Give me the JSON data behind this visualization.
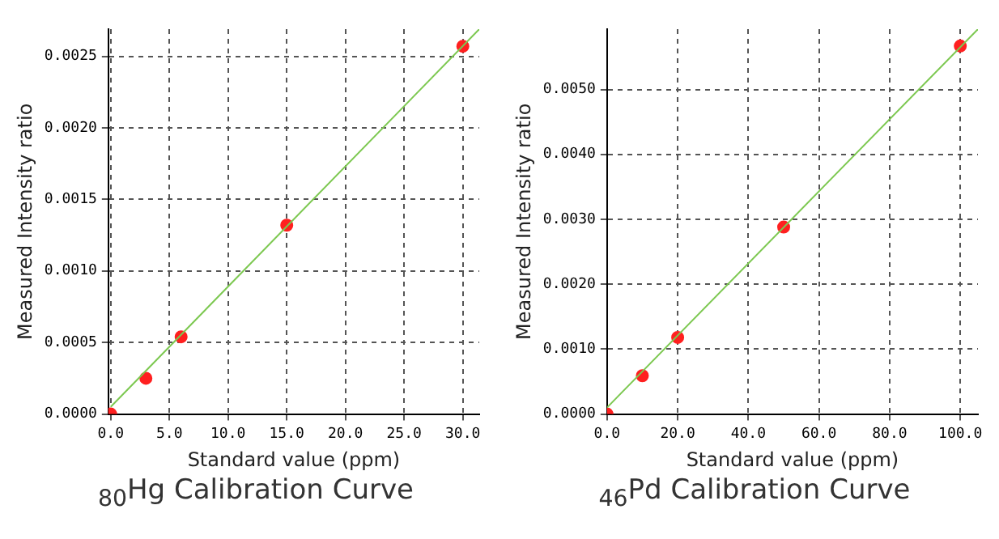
{
  "chart_data": [
    {
      "type": "scatter",
      "title": "$_{80}$Hg Calibration Curve",
      "xlabel": "Standard value (ppm)",
      "ylabel": "Measured Intensity ratio",
      "xlim": [
        -0.2,
        31.4
      ],
      "ylim": [
        0,
        0.00269
      ],
      "xticks": [
        {
          "value": 0,
          "label": "0.0"
        },
        {
          "value": 5,
          "label": "5.0"
        },
        {
          "value": 10,
          "label": "10.0"
        },
        {
          "value": 15,
          "label": "15.0"
        },
        {
          "value": 20,
          "label": "20.0"
        },
        {
          "value": 25,
          "label": "25.0"
        },
        {
          "value": 30,
          "label": "30.0"
        }
      ],
      "yticks": [
        {
          "value": 0,
          "label": "0.0000"
        },
        {
          "value": 0.0005,
          "label": "0.0005"
        },
        {
          "value": 0.001,
          "label": "0.0010"
        },
        {
          "value": 0.0015,
          "label": "0.0015"
        },
        {
          "value": 0.002,
          "label": "0.0020"
        },
        {
          "value": 0.0025,
          "label": "0.0025"
        }
      ],
      "grid": true,
      "legend": false,
      "marker": "circle",
      "series": [
        {
          "type": "line",
          "color": "#7cc850",
          "x": [
            0,
            31.4
          ],
          "values": [
            5e-05,
            0.00269
          ],
          "marker": "none"
        },
        {
          "color": "#ff2020",
          "x": [
            0,
            3,
            6,
            15,
            30
          ],
          "values": [
            0,
            0.00025,
            0.00054,
            0.00132,
            0.00257
          ]
        }
      ]
    },
    {
      "type": "scatter",
      "title": "$_{46}$Pd Calibration Curve",
      "xlabel": "Standard value (ppm)",
      "ylabel": "Measured Intensity ratio",
      "xlim": [
        0,
        105
      ],
      "ylim": [
        0,
        0.00593
      ],
      "xticks": [
        {
          "value": 0,
          "label": "0.0"
        },
        {
          "value": 20,
          "label": "20.0"
        },
        {
          "value": 40,
          "label": "40.0"
        },
        {
          "value": 60,
          "label": "60.0"
        },
        {
          "value": 80,
          "label": "80.0"
        },
        {
          "value": 100,
          "label": "100.0"
        }
      ],
      "yticks": [
        {
          "value": 0,
          "label": "0.0000"
        },
        {
          "value": 0.001,
          "label": "0.0010"
        },
        {
          "value": 0.002,
          "label": "0.0020"
        },
        {
          "value": 0.003,
          "label": "0.0030"
        },
        {
          "value": 0.004,
          "label": "0.0040"
        },
        {
          "value": 0.005,
          "label": "0.0050"
        }
      ],
      "grid": true,
      "legend": false,
      "marker": "circle",
      "series": [
        {
          "type": "line",
          "color": "#7cc850",
          "x": [
            0,
            105
          ],
          "values": [
            0.0001,
            0.00593
          ],
          "marker": "none"
        },
        {
          "color": "#ff2020",
          "x": [
            0,
            10,
            20,
            50,
            100
          ],
          "values": [
            0,
            0.00059,
            0.00118,
            0.00288,
            0.00567
          ]
        }
      ]
    }
  ]
}
